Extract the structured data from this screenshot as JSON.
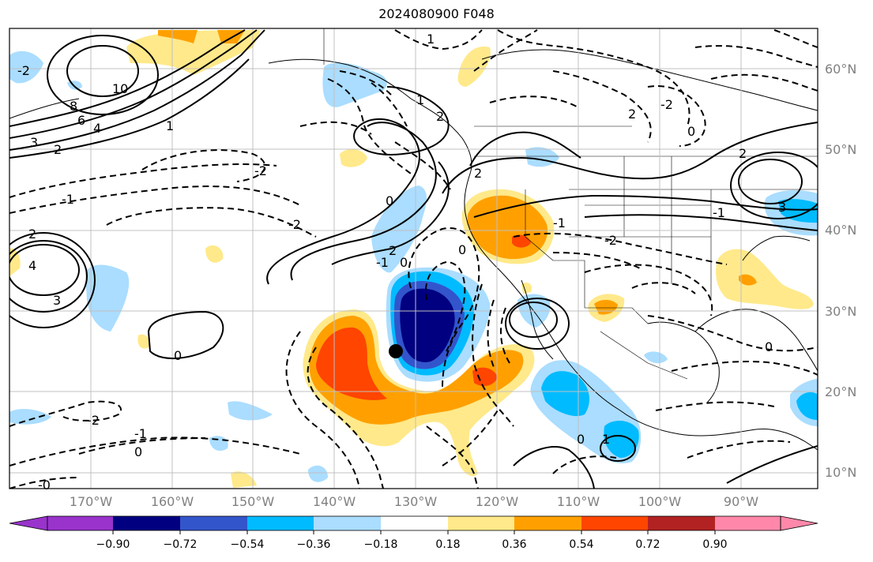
{
  "title": "2024080900 F048",
  "lat_labels": [
    "60°N",
    "50°N",
    "40°N",
    "30°N",
    "20°N",
    "10°N"
  ],
  "lon_labels": [
    "170°W",
    "160°W",
    "150°W",
    "140°W",
    "130°W",
    "120°W",
    "110°W",
    "100°W",
    "90°W"
  ],
  "colorbar": {
    "ticks": [
      "−0.90",
      "−0.72",
      "−0.54",
      "−0.36",
      "−0.18",
      "0.18",
      "0.36",
      "0.54",
      "0.72",
      "0.90"
    ],
    "colors": [
      "#9933cc",
      "#000080",
      "#3355cc",
      "#00bbff",
      "#aaddff",
      "#ffffff",
      "#ffe98a",
      "#ffa000",
      "#ff4500",
      "#b22222",
      "#ff88aa"
    ]
  },
  "contour_labels": [
    "10",
    "8",
    "6",
    "4",
    "3",
    "2",
    "1",
    "-1",
    "-2",
    "0",
    "2",
    "4",
    "3",
    "0",
    "-2",
    "2",
    "-1",
    "0",
    "0",
    "1",
    "2",
    "2",
    "-2",
    "-1",
    "0",
    "2",
    "-2",
    "-1",
    "3",
    "-0",
    "-2",
    "-1",
    "0",
    "1",
    "0",
    "0",
    "1",
    "-2",
    "2"
  ],
  "marker": "black-dot"
}
